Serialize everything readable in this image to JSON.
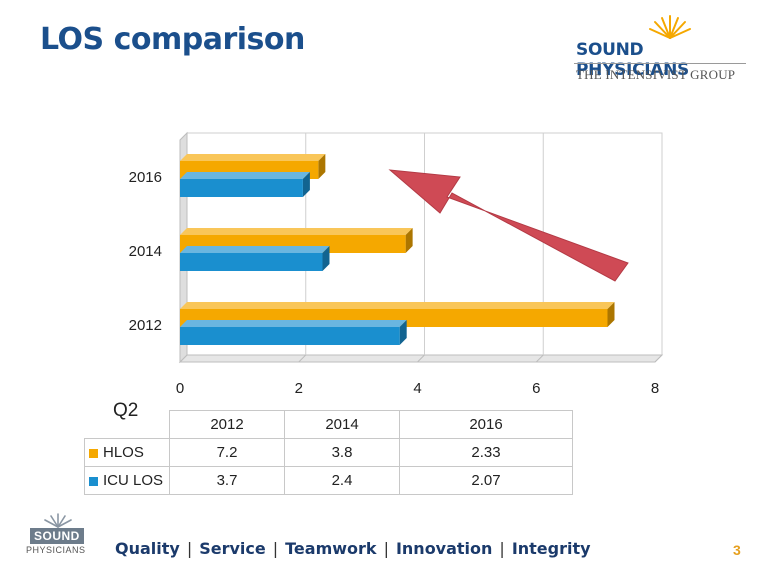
{
  "header": {
    "title": "LOS comparison",
    "logo_name": "SOUND PHYSICIANS",
    "logo_tagline": "THE INTENSIVIST GROUP"
  },
  "chart_data": {
    "type": "bar",
    "orientation": "horizontal",
    "categories": [
      "2012",
      "2014",
      "2016"
    ],
    "series": [
      {
        "name": "HLOS",
        "values": [
          7.2,
          3.8,
          2.33
        ],
        "color": "#f5a800"
      },
      {
        "name": "ICU LOS",
        "values": [
          3.7,
          2.4,
          2.07
        ],
        "color": "#1a8fcf"
      }
    ],
    "xlim": [
      0,
      8
    ],
    "xticks": [
      "0",
      "2",
      "4",
      "6",
      "8"
    ],
    "grid": true,
    "arrow_color": "#cf4a55"
  },
  "table": {
    "period_label": "Q2",
    "columns": [
      "2012",
      "2014",
      "2016"
    ],
    "rows": [
      {
        "label": "HLOS",
        "values": [
          "7.2",
          "3.8",
          "2.33"
        ],
        "color": "#f5a800"
      },
      {
        "label": "ICU LOS",
        "values": [
          "3.7",
          "2.4",
          "2.07"
        ],
        "color": "#1a8fcf"
      }
    ]
  },
  "footer": {
    "logo_line1": "SOUND",
    "logo_line2": "PHYSICIANS",
    "values": [
      "Quality",
      "Service",
      "Teamwork",
      "Innovation",
      "Integrity"
    ],
    "separator": "|",
    "page_number": "3"
  }
}
